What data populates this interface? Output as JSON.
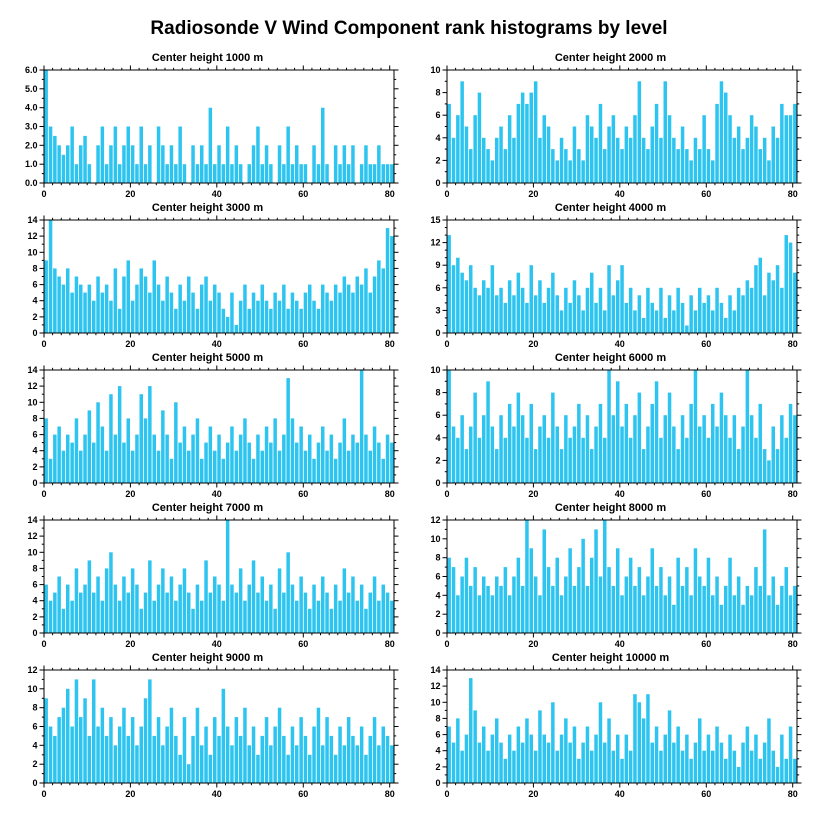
{
  "page_title": "Radiosonde V Wind Component rank histograms by level",
  "colors": {
    "bar": "#2EC4F0",
    "axis": "#000000",
    "background": "#FFFFFF"
  },
  "axes": {
    "xticks": [
      0,
      20,
      40,
      60,
      80
    ],
    "x_minor_step": 2,
    "xlim": [
      0,
      81
    ]
  },
  "chart_data": [
    {
      "type": "bar",
      "title": "Center height 1000 m",
      "ylim": [
        0,
        6
      ],
      "yticks": [
        0,
        1,
        2,
        3,
        4,
        5,
        6
      ],
      "ytick_decimals": 1,
      "y_minor_step": 0.5,
      "values": [
        6,
        3,
        2.5,
        2,
        1.5,
        2,
        3,
        1,
        2,
        2.5,
        1,
        0,
        2,
        3,
        1,
        2,
        3,
        1,
        2,
        3,
        2,
        1,
        3,
        1,
        2,
        0,
        3,
        2,
        1,
        2,
        1,
        3,
        1,
        0,
        2,
        1,
        2,
        1,
        4,
        1,
        2,
        1,
        3,
        1,
        2,
        1,
        0,
        1,
        2,
        3,
        1,
        2,
        1,
        0,
        2,
        1,
        3,
        1,
        2,
        1,
        1,
        0,
        2,
        1,
        4,
        1,
        0,
        2,
        1,
        2,
        1,
        2,
        0,
        1,
        2,
        1,
        1,
        2,
        1,
        1,
        1
      ]
    },
    {
      "type": "bar",
      "title": "Center height 2000 m",
      "ylim": [
        0,
        10
      ],
      "yticks": [
        0,
        2,
        4,
        6,
        8,
        10
      ],
      "ytick_decimals": 0,
      "y_minor_step": 1,
      "values": [
        7,
        4,
        6,
        9,
        5,
        3,
        6,
        8,
        4,
        3,
        2,
        4,
        5,
        3,
        6,
        4,
        7,
        8,
        7,
        8,
        9,
        4,
        6,
        5,
        3,
        2,
        4,
        3,
        2,
        5,
        3,
        2,
        6,
        5,
        4,
        7,
        3,
        5,
        6,
        4,
        3,
        5,
        4,
        6,
        9,
        4,
        3,
        5,
        7,
        4,
        9,
        6,
        4,
        3,
        5,
        3,
        2,
        4,
        3,
        6,
        3,
        2,
        7,
        9,
        8,
        6,
        4,
        5,
        3,
        4,
        6,
        5,
        3,
        4,
        2,
        5,
        4,
        7,
        6,
        6,
        7
      ]
    },
    {
      "type": "bar",
      "title": "Center height 3000 m",
      "ylim": [
        0,
        14
      ],
      "yticks": [
        0,
        2,
        4,
        6,
        8,
        10,
        12,
        14
      ],
      "ytick_decimals": 0,
      "y_minor_step": 1,
      "values": [
        9,
        14,
        8,
        7,
        6,
        8,
        5,
        7,
        6,
        5,
        6,
        4,
        7,
        5,
        6,
        4,
        8,
        3,
        7,
        9,
        4,
        6,
        8,
        7,
        5,
        9,
        6,
        4,
        7,
        5,
        3,
        6,
        4,
        7,
        5,
        3,
        6,
        7,
        4,
        6,
        5,
        3,
        2,
        5,
        1,
        4,
        6,
        3,
        5,
        4,
        6,
        4,
        3,
        5,
        4,
        6,
        3,
        5,
        4,
        3,
        5,
        6,
        4,
        3,
        6,
        5,
        4,
        6,
        5,
        7,
        6,
        5,
        7,
        6,
        8,
        5,
        7,
        9,
        8,
        13,
        12
      ]
    },
    {
      "type": "bar",
      "title": "Center height 4000 m",
      "ylim": [
        0,
        15
      ],
      "yticks": [
        0,
        3,
        6,
        9,
        12,
        15
      ],
      "ytick_decimals": 0,
      "y_minor_step": 1,
      "values": [
        13,
        9,
        10,
        8,
        7,
        9,
        6,
        5,
        7,
        6,
        9,
        5,
        6,
        4,
        7,
        5,
        8,
        6,
        4,
        9,
        5,
        7,
        4,
        6,
        8,
        5,
        3,
        6,
        4,
        7,
        5,
        3,
        6,
        8,
        4,
        6,
        3,
        9,
        5,
        7,
        9,
        4,
        6,
        3,
        5,
        2,
        6,
        4,
        3,
        6,
        2,
        5,
        3,
        6,
        4,
        1,
        5,
        3,
        6,
        4,
        5,
        3,
        6,
        4,
        2,
        5,
        3,
        6,
        5,
        7,
        6,
        9,
        10,
        5,
        8,
        7,
        9,
        6,
        13,
        12,
        8
      ]
    },
    {
      "type": "bar",
      "title": "Center height 5000 m",
      "ylim": [
        0,
        14
      ],
      "yticks": [
        0,
        2,
        4,
        6,
        8,
        10,
        12,
        14
      ],
      "ytick_decimals": 0,
      "y_minor_step": 1,
      "values": [
        8,
        3,
        6,
        7,
        4,
        6,
        5,
        8,
        4,
        6,
        9,
        5,
        10,
        7,
        4,
        11,
        6,
        12,
        5,
        8,
        4,
        6,
        11,
        8,
        12,
        6,
        4,
        9,
        6,
        3,
        10,
        5,
        7,
        4,
        6,
        8,
        3,
        5,
        7,
        4,
        6,
        3,
        5,
        7,
        4,
        6,
        8,
        5,
        3,
        6,
        4,
        7,
        5,
        8,
        4,
        6,
        13,
        8,
        5,
        7,
        4,
        6,
        3,
        5,
        7,
        4,
        6,
        3,
        5,
        8,
        4,
        6,
        5,
        14,
        6,
        4,
        7,
        5,
        3,
        6,
        5
      ]
    },
    {
      "type": "bar",
      "title": "Center height 6000 m",
      "ylim": [
        0,
        10
      ],
      "yticks": [
        0,
        2,
        4,
        6,
        8,
        10
      ],
      "ytick_decimals": 0,
      "y_minor_step": 1,
      "values": [
        10,
        5,
        4,
        6,
        3,
        5,
        8,
        4,
        6,
        9,
        5,
        3,
        6,
        4,
        7,
        5,
        8,
        6,
        4,
        7,
        3,
        5,
        6,
        4,
        8,
        5,
        3,
        6,
        4,
        5,
        7,
        4,
        6,
        3,
        5,
        7,
        4,
        10,
        6,
        9,
        5,
        7,
        4,
        6,
        8,
        3,
        5,
        7,
        9,
        4,
        6,
        8,
        5,
        3,
        6,
        4,
        7,
        10,
        5,
        6,
        4,
        7,
        5,
        8,
        6,
        4,
        6,
        3,
        5,
        10,
        6,
        4,
        7,
        3,
        2,
        5,
        3,
        6,
        4,
        7,
        6
      ]
    },
    {
      "type": "bar",
      "title": "Center height 7000 m",
      "ylim": [
        0,
        14
      ],
      "yticks": [
        0,
        2,
        4,
        6,
        8,
        10,
        12,
        14
      ],
      "ytick_decimals": 0,
      "y_minor_step": 1,
      "values": [
        6,
        4,
        5,
        7,
        3,
        6,
        4,
        8,
        5,
        6,
        9,
        5,
        7,
        4,
        8,
        10,
        6,
        4,
        7,
        5,
        8,
        6,
        3,
        5,
        9,
        4,
        6,
        8,
        5,
        7,
        4,
        6,
        8,
        5,
        3,
        6,
        4,
        9,
        5,
        7,
        6,
        4,
        14,
        6,
        5,
        8,
        4,
        6,
        9,
        5,
        7,
        4,
        6,
        3,
        8,
        5,
        10,
        6,
        4,
        7,
        5,
        3,
        6,
        4,
        7,
        5,
        3,
        6,
        4,
        8,
        5,
        7,
        4,
        6,
        3,
        5,
        7,
        4,
        6,
        5,
        4
      ]
    },
    {
      "type": "bar",
      "title": "Center height 8000 m",
      "ylim": [
        0,
        12
      ],
      "yticks": [
        0,
        2,
        4,
        6,
        8,
        10,
        12
      ],
      "ytick_decimals": 0,
      "y_minor_step": 1,
      "values": [
        8,
        7,
        4,
        6,
        8,
        5,
        7,
        4,
        6,
        5,
        4,
        6,
        5,
        7,
        4,
        6,
        8,
        5,
        12,
        9,
        6,
        4,
        11,
        7,
        5,
        8,
        4,
        6,
        9,
        5,
        7,
        10,
        5,
        8,
        11,
        6,
        12,
        7,
        5,
        9,
        4,
        6,
        8,
        5,
        7,
        4,
        6,
        9,
        5,
        7,
        4,
        6,
        3,
        8,
        5,
        7,
        4,
        9,
        6,
        5,
        8,
        4,
        6,
        3,
        5,
        8,
        4,
        6,
        3,
        5,
        4,
        7,
        5,
        11,
        4,
        6,
        3,
        5,
        7,
        4,
        5
      ]
    },
    {
      "type": "bar",
      "title": "Center height 9000 m",
      "ylim": [
        0,
        12
      ],
      "yticks": [
        0,
        2,
        4,
        6,
        8,
        10,
        12
      ],
      "ytick_decimals": 0,
      "y_minor_step": 1,
      "values": [
        9,
        6,
        5,
        7,
        8,
        10,
        6,
        11,
        7,
        9,
        5,
        11,
        6,
        8,
        5,
        7,
        4,
        6,
        8,
        5,
        7,
        4,
        6,
        9,
        11,
        5,
        7,
        4,
        6,
        8,
        5,
        3,
        7,
        2,
        5,
        8,
        4,
        6,
        3,
        7,
        5,
        10,
        6,
        4,
        7,
        5,
        8,
        4,
        6,
        3,
        5,
        7,
        4,
        6,
        8,
        5,
        3,
        6,
        4,
        7,
        5,
        3,
        6,
        8,
        4,
        7,
        5,
        3,
        6,
        4,
        7,
        5,
        4,
        6,
        3,
        5,
        7,
        4,
        6,
        5,
        4
      ]
    },
    {
      "type": "bar",
      "title": "Center height 10000 m",
      "ylim": [
        0,
        14
      ],
      "yticks": [
        0,
        2,
        4,
        6,
        8,
        10,
        12,
        14
      ],
      "ytick_decimals": 0,
      "y_minor_step": 1,
      "values": [
        7,
        5,
        8,
        4,
        6,
        13,
        9,
        5,
        7,
        4,
        6,
        8,
        5,
        3,
        6,
        4,
        7,
        5,
        8,
        6,
        4,
        9,
        6,
        5,
        10,
        4,
        6,
        8,
        5,
        7,
        3,
        5,
        7,
        4,
        6,
        10,
        5,
        8,
        4,
        6,
        3,
        6,
        4,
        11,
        10,
        8,
        11,
        5,
        7,
        4,
        6,
        9,
        5,
        7,
        4,
        6,
        3,
        5,
        8,
        4,
        6,
        4,
        7,
        5,
        3,
        6,
        4,
        2,
        5,
        7,
        4,
        6,
        3,
        5,
        8,
        4,
        2,
        6,
        3,
        7,
        3
      ]
    }
  ]
}
